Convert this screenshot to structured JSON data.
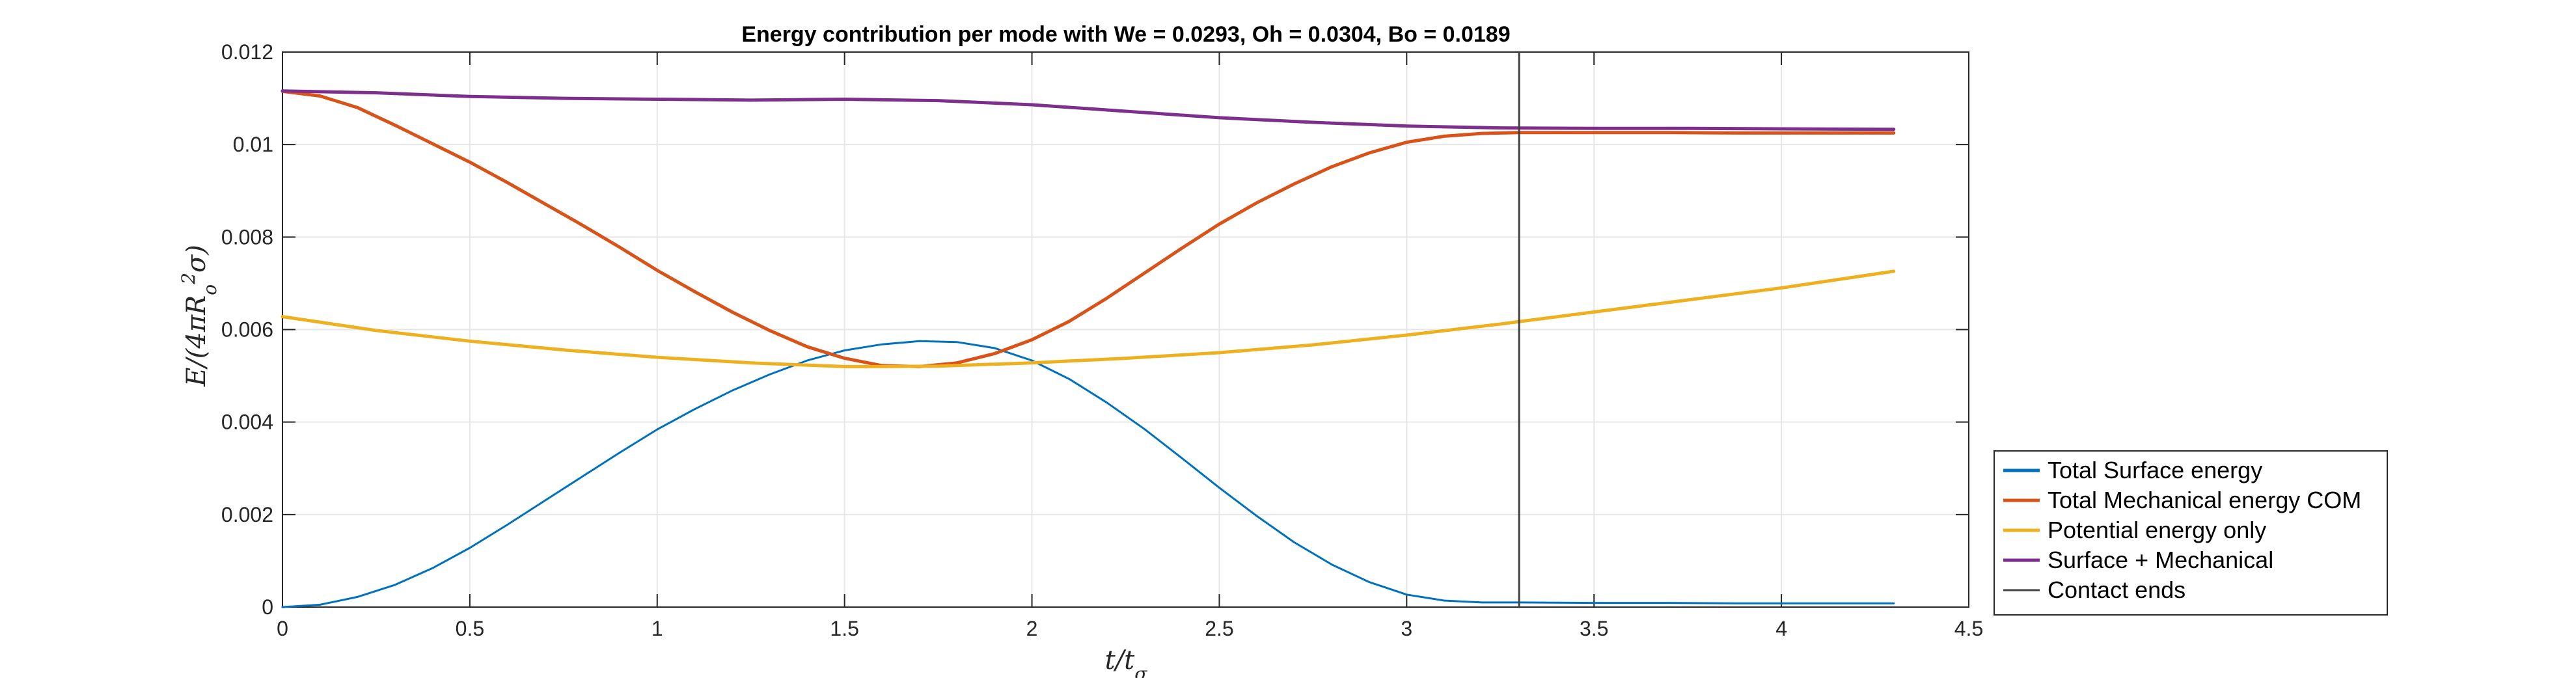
{
  "chart_data": {
    "type": "line",
    "title": "Energy contribution per mode with We = 0.0293, Oh = 0.0304, Bo = 0.0189",
    "xlabel": "t/t_σ",
    "ylabel": "E/(4πR_o²σ)",
    "xlim": [
      0,
      4.5
    ],
    "ylim": [
      0,
      0.012
    ],
    "xticks": [
      0,
      0.5,
      1,
      1.5,
      2,
      2.5,
      3,
      3.5,
      4,
      4.5
    ],
    "xtick_labels": [
      "0",
      "0.5",
      "1",
      "1.5",
      "2",
      "2.5",
      "3",
      "3.5",
      "4",
      "4.5"
    ],
    "yticks": [
      0,
      0.002,
      0.004,
      0.006,
      0.008,
      0.01,
      0.012
    ],
    "ytick_labels": [
      "0",
      "0.002",
      "0.004",
      "0.006",
      "0.008",
      "0.01",
      "0.012"
    ],
    "grid": true,
    "legend_position": "bottom-right-outside",
    "series": [
      {
        "name": "Total Surface energy",
        "color": "#0072BD",
        "x": [
          0,
          0.1,
          0.2,
          0.3,
          0.4,
          0.5,
          0.6,
          0.7,
          0.8,
          0.9,
          1.0,
          1.1,
          1.2,
          1.3,
          1.4,
          1.5,
          1.6,
          1.7,
          1.8,
          1.9,
          2.0,
          2.1,
          2.2,
          2.3,
          2.4,
          2.5,
          2.6,
          2.7,
          2.8,
          2.9,
          3.0,
          3.1,
          3.2,
          3.3,
          3.5,
          3.7,
          3.9,
          4.1,
          4.3
        ],
        "y": [
          0,
          5e-05,
          0.00022,
          0.00048,
          0.00084,
          0.00128,
          0.00178,
          0.0023,
          0.00282,
          0.00334,
          0.00384,
          0.00428,
          0.00468,
          0.00503,
          0.00533,
          0.00555,
          0.00568,
          0.00575,
          0.00573,
          0.0056,
          0.00533,
          0.00493,
          0.00442,
          0.00385,
          0.00322,
          0.00258,
          0.00197,
          0.0014,
          0.00092,
          0.00054,
          0.00027,
          0.00014,
          0.0001,
          0.0001,
          9e-05,
          9e-05,
          8e-05,
          8e-05,
          8e-05
        ]
      },
      {
        "name": "Total Mechanical energy COM",
        "color": "#D95319",
        "x": [
          0,
          0.1,
          0.2,
          0.3,
          0.4,
          0.5,
          0.6,
          0.7,
          0.8,
          0.9,
          1.0,
          1.1,
          1.2,
          1.3,
          1.4,
          1.5,
          1.6,
          1.7,
          1.8,
          1.9,
          2.0,
          2.1,
          2.2,
          2.3,
          2.4,
          2.5,
          2.6,
          2.7,
          2.8,
          2.9,
          3.0,
          3.1,
          3.2,
          3.3,
          3.5,
          3.7,
          3.9,
          4.1,
          4.3
        ],
        "y": [
          0.01115,
          0.01105,
          0.0108,
          0.01042,
          0.01002,
          0.00962,
          0.00918,
          0.00872,
          0.00826,
          0.00778,
          0.00728,
          0.00682,
          0.00638,
          0.00598,
          0.00563,
          0.00538,
          0.00522,
          0.0052,
          0.00528,
          0.00548,
          0.00578,
          0.00618,
          0.00668,
          0.00722,
          0.00776,
          0.00828,
          0.00874,
          0.00915,
          0.00952,
          0.00982,
          0.01005,
          0.01018,
          0.01024,
          0.01026,
          0.01026,
          0.01026,
          0.01025,
          0.01025,
          0.01025
        ]
      },
      {
        "name": "Potential energy only",
        "color": "#EDB120",
        "x": [
          0,
          0.25,
          0.5,
          0.75,
          1.0,
          1.25,
          1.5,
          1.6,
          1.75,
          2.0,
          2.25,
          2.5,
          2.75,
          3.0,
          3.25,
          3.5,
          3.75,
          4.0,
          4.3
        ],
        "y": [
          0.00628,
          0.00598,
          0.00575,
          0.00556,
          0.0054,
          0.00528,
          0.0052,
          0.0052,
          0.00521,
          0.00528,
          0.00538,
          0.0055,
          0.00567,
          0.00588,
          0.00612,
          0.00638,
          0.00664,
          0.0069,
          0.00726
        ]
      },
      {
        "name": "Surface + Mechanical",
        "color": "#7E2F8E",
        "x": [
          0,
          0.25,
          0.5,
          0.75,
          1.0,
          1.25,
          1.5,
          1.75,
          2.0,
          2.25,
          2.5,
          2.75,
          3.0,
          3.25,
          3.5,
          3.75,
          4.0,
          4.3
        ],
        "y": [
          0.01116,
          0.01112,
          0.01104,
          0.011,
          0.01098,
          0.01096,
          0.01098,
          0.01095,
          0.01086,
          0.01072,
          0.01058,
          0.01048,
          0.0104,
          0.01036,
          0.01035,
          0.01035,
          0.01034,
          0.01033
        ]
      },
      {
        "name": "Contact ends",
        "color": "#404040",
        "x": [
          3.3,
          3.3
        ],
        "y": [
          0,
          0.012
        ]
      }
    ]
  }
}
